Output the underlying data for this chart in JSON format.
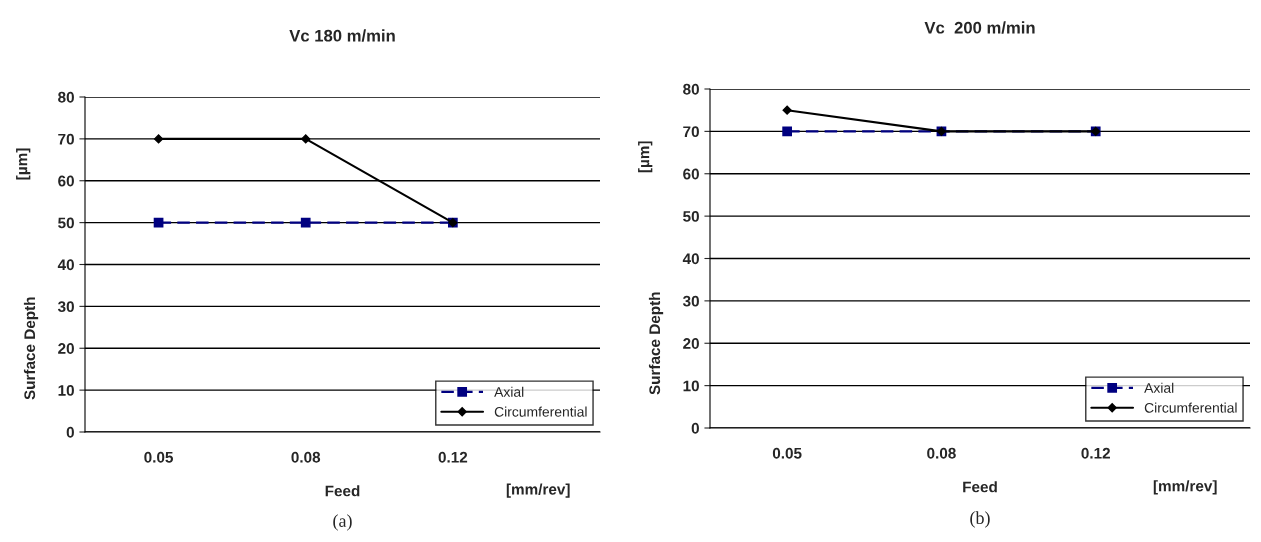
{
  "chart_data": [
    {
      "type": "line",
      "title": "Vc 180 m/min",
      "xlabel": "Feed",
      "ylabel": "Surface Depth",
      "annotations": [
        "[µm]",
        "[mm/rev]",
        "(a)"
      ],
      "categories": [
        "0.05",
        "0.08",
        "0.12"
      ],
      "series": [
        {
          "name": "Axial",
          "color": "#000080",
          "values": [
            50,
            50,
            50
          ],
          "marker": "square",
          "line_style": "dashed"
        },
        {
          "name": "Circumferential",
          "color": "#000000",
          "values": [
            70,
            70,
            50
          ],
          "marker": "diamond",
          "line_style": "solid"
        }
      ],
      "ylim": [
        0,
        80
      ],
      "yticks": [
        0,
        10,
        20,
        30,
        40,
        50,
        60,
        70,
        80
      ],
      "grid": "y",
      "legend": "bottom right"
    },
    {
      "type": "line",
      "title": "Vc  200 m/min",
      "xlabel": "Feed",
      "ylabel": "Surface Depth",
      "annotations": [
        "[µm]",
        "[mm/rev]",
        "(b)"
      ],
      "categories": [
        "0.05",
        "0.08",
        "0.12"
      ],
      "series": [
        {
          "name": "Axial",
          "color": "#000080",
          "values": [
            70,
            70,
            70
          ],
          "marker": "square",
          "line_style": "dashed"
        },
        {
          "name": "Circumferential",
          "color": "#000000",
          "values": [
            75,
            70,
            70
          ],
          "marker": "diamond",
          "line_style": "solid"
        }
      ],
      "ylim": [
        0,
        80
      ],
      "yticks": [
        0,
        10,
        20,
        30,
        40,
        50,
        60,
        70,
        80
      ],
      "grid": "y",
      "legend": "bottom right"
    }
  ]
}
